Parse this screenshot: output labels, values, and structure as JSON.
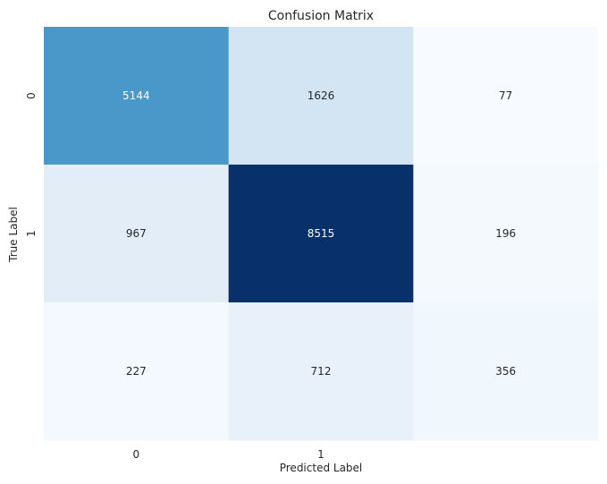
{
  "chart_data": {
    "type": "heatmap",
    "title": "Confusion Matrix",
    "xlabel": "Predicted Label",
    "ylabel": "True Label",
    "x_tick_labels": [
      "0",
      "1",
      ""
    ],
    "y_tick_labels": [
      "0",
      "1",
      ""
    ],
    "values": [
      [
        5144,
        1626,
        77
      ],
      [
        967,
        8515,
        196
      ],
      [
        227,
        712,
        356
      ]
    ],
    "colormap": "Blues",
    "colorbar": false,
    "grid": false
  }
}
